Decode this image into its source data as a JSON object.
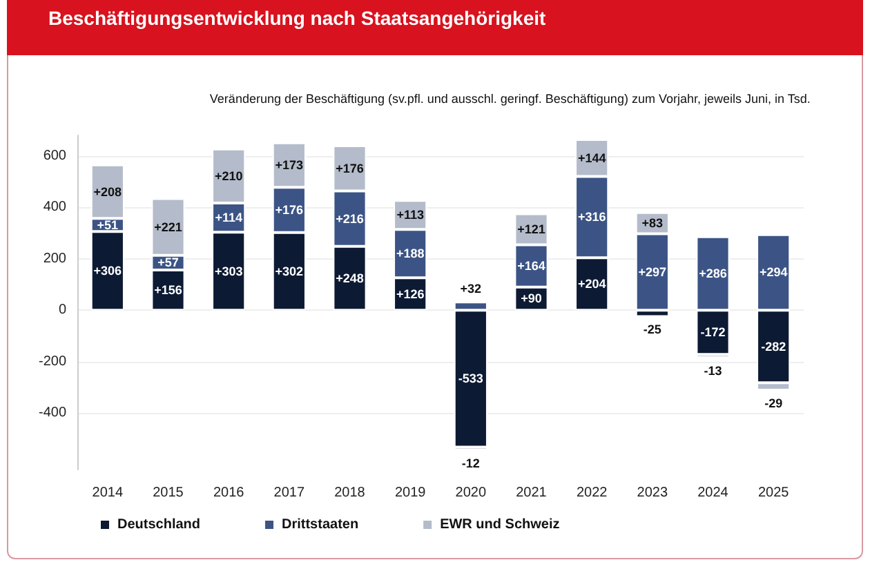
{
  "chart_data": {
    "type": "bar",
    "title": "Beschäftigungsentwicklung nach Staatsangehörigkeit",
    "subtitle": "Veränderung der Beschäftigung (sv.pfl. und ausschl. geringf. Beschäftigung) zum Vorjahr, jeweils Juni, in Tsd.",
    "categories": [
      "2014",
      "2015",
      "2016",
      "2017",
      "2018",
      "2019",
      "2020",
      "2021",
      "2022",
      "2023",
      "2024",
      "2025"
    ],
    "stacked": true,
    "series": [
      {
        "name": "Deutschland",
        "color": "#0d1a33",
        "values": [
          306,
          156,
          303,
          302,
          248,
          126,
          -533,
          90,
          204,
          -25,
          -172,
          -282
        ],
        "value_labels": [
          "+306",
          "+156",
          "+303",
          "+302",
          "+248",
          "+126",
          "-533",
          "+90",
          "+204",
          "-25",
          "-172",
          "-282"
        ]
      },
      {
        "name": "Drittstaaten",
        "color": "#3c5485",
        "values": [
          51,
          57,
          114,
          176,
          216,
          188,
          32,
          164,
          316,
          297,
          286,
          294
        ],
        "value_labels": [
          "+51",
          "+57",
          "+114",
          "+176",
          "+216",
          "+188",
          "+32",
          "+164",
          "+316",
          "+297",
          "+286",
          "+294"
        ]
      },
      {
        "name": "EWR und Schweiz",
        "color": "#b4bccb",
        "values": [
          208,
          221,
          210,
          173,
          176,
          113,
          -12,
          121,
          144,
          83,
          -13,
          -29
        ],
        "value_labels": [
          "+208",
          "+221",
          "+210",
          "+173",
          "+176",
          "+113",
          "-12",
          "+121",
          "+144",
          "+83",
          "-13",
          "-29"
        ]
      }
    ],
    "ylim": [
      -620,
      680
    ],
    "yticks": [
      -400,
      -200,
      0,
      200,
      400,
      600
    ],
    "grid": "y",
    "legend": "bottom left"
  }
}
